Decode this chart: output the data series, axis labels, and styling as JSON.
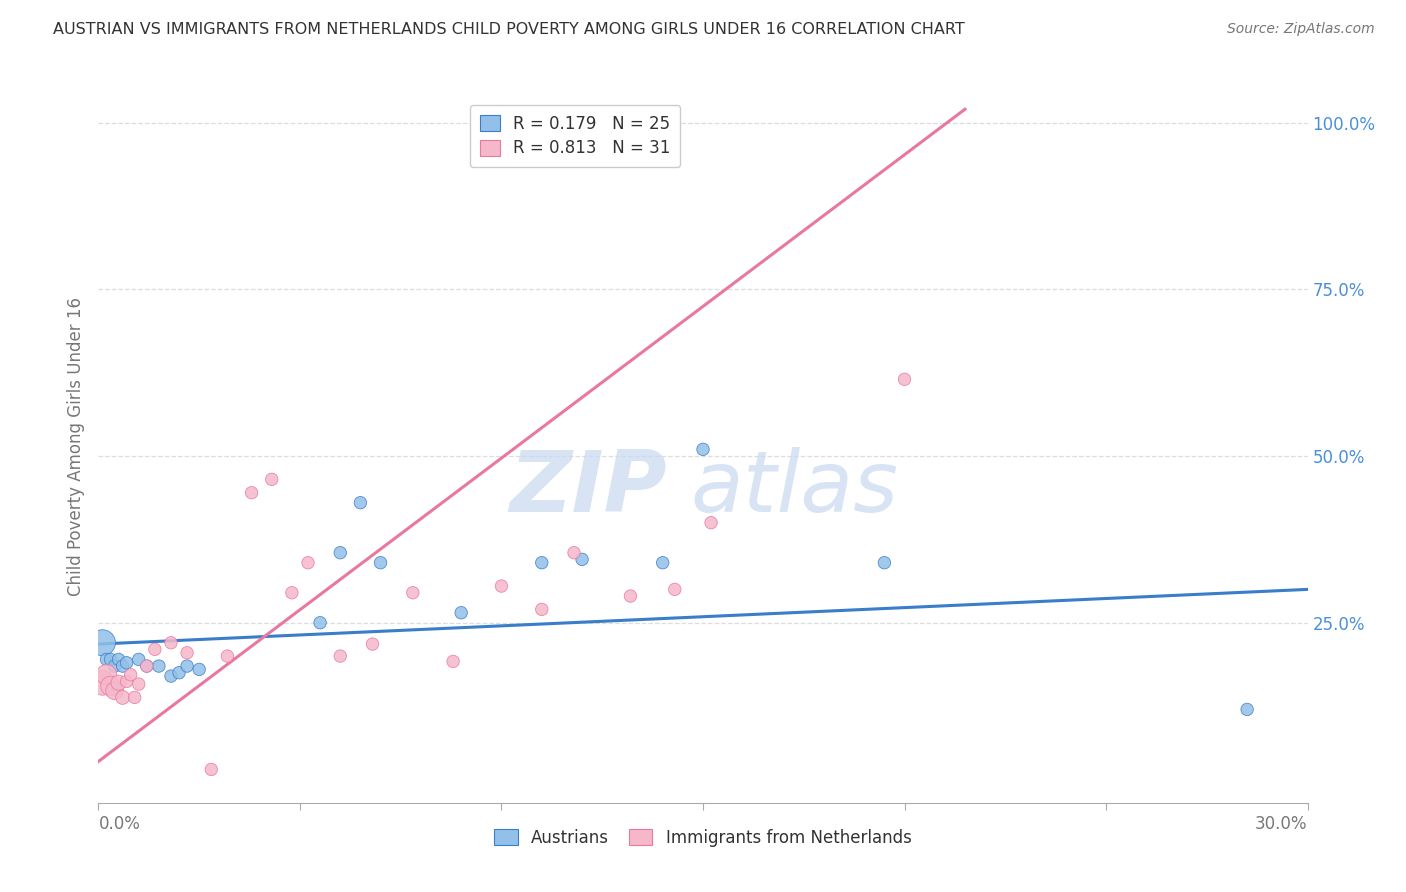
{
  "title": "AUSTRIAN VS IMMIGRANTS FROM NETHERLANDS CHILD POVERTY AMONG GIRLS UNDER 16 CORRELATION CHART",
  "source": "Source: ZipAtlas.com",
  "ylabel": "Child Poverty Among Girls Under 16",
  "xlim": [
    0.0,
    0.3
  ],
  "ylim": [
    -0.02,
    1.05
  ],
  "xtick_labels": [
    "0.0%",
    "",
    "",
    "",
    "",
    "",
    "30.0%"
  ],
  "xtick_vals": [
    0.0,
    0.05,
    0.1,
    0.15,
    0.2,
    0.25,
    0.3
  ],
  "ytick_labels_right": [
    "100.0%",
    "75.0%",
    "50.0%",
    "25.0%"
  ],
  "ytick_vals_right": [
    1.0,
    0.75,
    0.5,
    0.25
  ],
  "legend_label1": "Austrians",
  "legend_label2": "Immigrants from Netherlands",
  "R1": "0.179",
  "N1": "25",
  "R2": "0.813",
  "N2": "31",
  "color_blue": "#92C0E8",
  "color_pink": "#F5B8CA",
  "color_blue_line": "#3A7DC9",
  "color_pink_line": "#E8789F",
  "color_title": "#333333",
  "color_source": "#777777",
  "color_right_ticks": "#4A90D9",
  "color_axis_labels": "#777777",
  "watermark_color": "#C8D8F0",
  "grid_color": "#DDDDDD",
  "blue_scatter_x": [
    0.001,
    0.002,
    0.003,
    0.004,
    0.005,
    0.006,
    0.007,
    0.01,
    0.012,
    0.015,
    0.018,
    0.02,
    0.022,
    0.025,
    0.055,
    0.06,
    0.065,
    0.07,
    0.09,
    0.11,
    0.12,
    0.14,
    0.15,
    0.195,
    0.285
  ],
  "blue_scatter_y": [
    0.22,
    0.195,
    0.195,
    0.185,
    0.195,
    0.185,
    0.19,
    0.195,
    0.185,
    0.185,
    0.17,
    0.175,
    0.185,
    0.18,
    0.25,
    0.355,
    0.43,
    0.34,
    0.265,
    0.34,
    0.345,
    0.34,
    0.51,
    0.34,
    0.12
  ],
  "blue_scatter_sizes": [
    350,
    80,
    80,
    80,
    80,
    80,
    80,
    80,
    80,
    80,
    80,
    80,
    80,
    80,
    80,
    80,
    80,
    80,
    80,
    80,
    80,
    80,
    80,
    80,
    80
  ],
  "pink_scatter_x": [
    0.001,
    0.002,
    0.003,
    0.004,
    0.005,
    0.006,
    0.007,
    0.008,
    0.009,
    0.01,
    0.012,
    0.014,
    0.018,
    0.022,
    0.028,
    0.032,
    0.038,
    0.043,
    0.048,
    0.052,
    0.06,
    0.068,
    0.078,
    0.088,
    0.1,
    0.11,
    0.118,
    0.132,
    0.143,
    0.152,
    0.2
  ],
  "pink_scatter_y": [
    0.16,
    0.172,
    0.155,
    0.148,
    0.16,
    0.138,
    0.162,
    0.172,
    0.138,
    0.158,
    0.185,
    0.21,
    0.22,
    0.205,
    0.03,
    0.2,
    0.445,
    0.465,
    0.295,
    0.34,
    0.2,
    0.218,
    0.295,
    0.192,
    0.305,
    0.27,
    0.355,
    0.29,
    0.3,
    0.4,
    0.615
  ],
  "pink_scatter_sizes": [
    320,
    220,
    200,
    160,
    120,
    100,
    80,
    80,
    80,
    80,
    80,
    80,
    80,
    80,
    80,
    80,
    80,
    80,
    80,
    80,
    80,
    80,
    80,
    80,
    80,
    80,
    80,
    80,
    80,
    80,
    80
  ],
  "blue_line_x": [
    0.0,
    0.3
  ],
  "blue_line_y": [
    0.218,
    0.3
  ],
  "pink_line_x": [
    0.0,
    0.215
  ],
  "pink_line_y": [
    0.042,
    1.02
  ]
}
